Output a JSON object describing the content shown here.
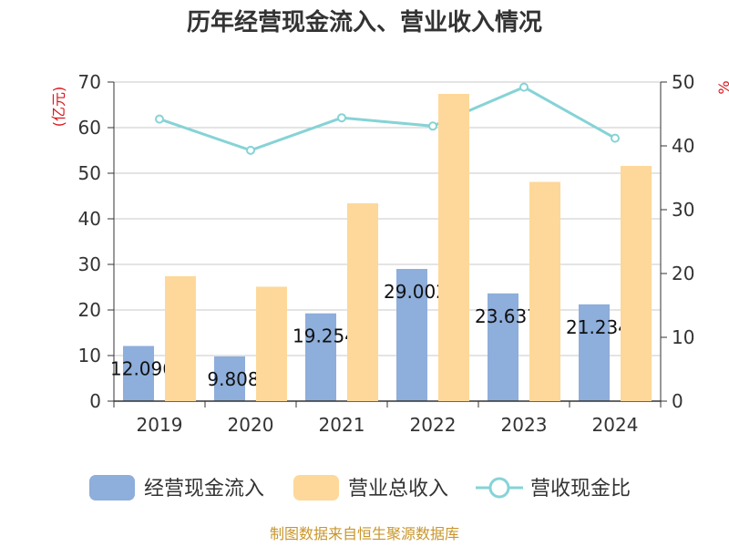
{
  "chart_data": {
    "type": "bar",
    "title": "历年经营现金流入、营业收入情况",
    "categories": [
      "2019",
      "2020",
      "2021",
      "2022",
      "2023",
      "2024"
    ],
    "series": [
      {
        "name": "经营现金流入",
        "kind": "bar",
        "axis": "left",
        "color": "#8eaedb",
        "values": [
          12.096,
          9.808,
          19.254,
          29.002,
          23.637,
          21.234
        ],
        "labels": [
          "12.096",
          "9.808",
          "19.254",
          "29.002",
          "23.637",
          "21.234"
        ]
      },
      {
        "name": "营业总收入",
        "kind": "bar",
        "axis": "left",
        "color": "#fdd89a",
        "values": [
          27.4,
          25.1,
          43.4,
          67.4,
          48.1,
          51.6
        ]
      },
      {
        "name": "营收现金比",
        "kind": "line",
        "axis": "right",
        "color": "#86d3d6",
        "values": [
          44.2,
          39.3,
          44.4,
          43.1,
          49.2,
          41.2
        ]
      }
    ],
    "y_left": {
      "label": "(亿元)",
      "min": 0,
      "max": 70,
      "ticks": [
        0,
        10,
        20,
        30,
        40,
        50,
        60,
        70
      ]
    },
    "y_right": {
      "label": "%",
      "min": 0,
      "max": 50,
      "ticks": [
        0,
        10,
        20,
        30,
        40,
        50
      ]
    },
    "grid": true,
    "legend_position": "bottom",
    "source": "制图数据来自恒生聚源数据库"
  }
}
